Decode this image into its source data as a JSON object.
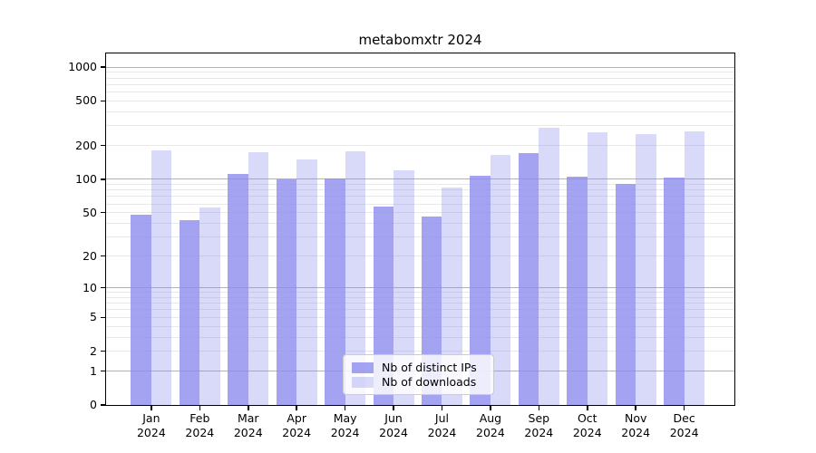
{
  "figure": {
    "title": "metabomxtr 2024",
    "background": "#ffffff"
  },
  "chart_data": {
    "type": "bar",
    "title": "metabomxtr 2024",
    "categories": [
      "Jan 2024",
      "Feb 2024",
      "Mar 2024",
      "Apr 2024",
      "May 2024",
      "Jun 2024",
      "Jul 2024",
      "Aug 2024",
      "Sep 2024",
      "Oct 2024",
      "Nov 2024",
      "Dec 2024"
    ],
    "series": [
      {
        "name": "Nb of distinct IPs",
        "color": "rgba(140,140,238,0.8)",
        "values": [
          48,
          43,
          112,
          100,
          102,
          57,
          46,
          108,
          170,
          106,
          91,
          104
        ]
      },
      {
        "name": "Nb of downloads",
        "color": "rgba(140,140,238,0.33)",
        "values": [
          180,
          56,
          176,
          151,
          178,
          121,
          85,
          164,
          290,
          263,
          254,
          268
        ]
      }
    ],
    "yscale": "log1p",
    "yticks": [
      0,
      1,
      2,
      5,
      10,
      20,
      50,
      100,
      200,
      500,
      1000
    ],
    "ylim": [
      0,
      1320
    ],
    "grid": "horizontal-major-and-minor",
    "legend_position": "lower-center"
  },
  "colors": {
    "major_grid": "#b2b2b2",
    "minor_grid": "#e8e8e8",
    "axis": "#000000"
  }
}
